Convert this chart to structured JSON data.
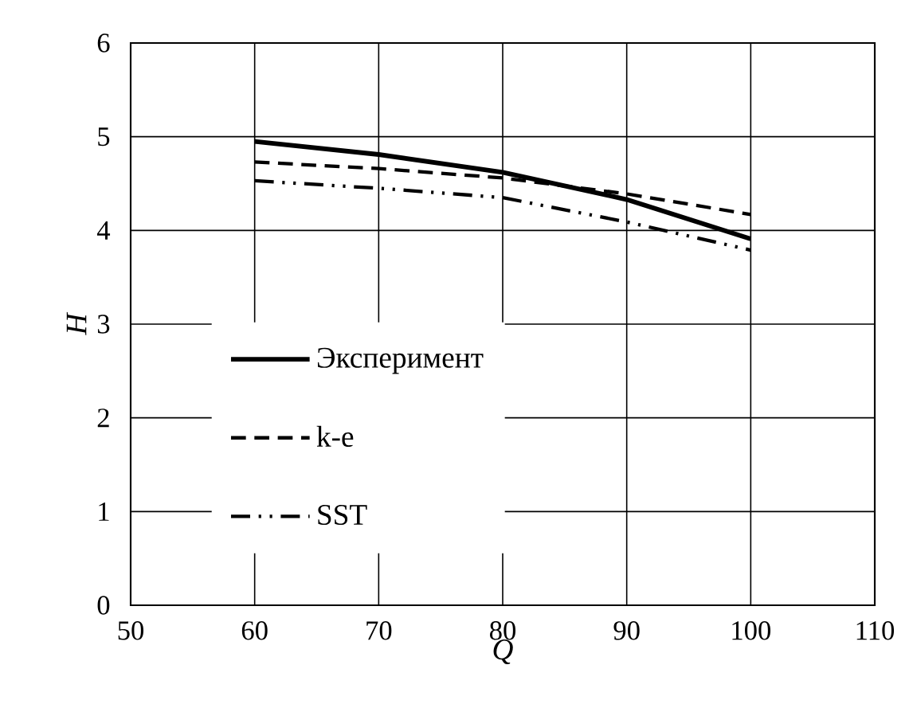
{
  "chart_data": {
    "type": "line",
    "xlabel": "Q",
    "ylabel": "H",
    "x": [
      60,
      70,
      80,
      90,
      100
    ],
    "series": [
      {
        "name": "Эксперимент",
        "color": "#000000",
        "line_style": "solid",
        "values": [
          4.95,
          4.81,
          4.62,
          4.33,
          3.91
        ]
      },
      {
        "name": "k-e",
        "color": "#000000",
        "line_style": "dashed",
        "values": [
          4.73,
          4.66,
          4.56,
          4.39,
          4.17
        ]
      },
      {
        "name": "SST",
        "color": "#000000",
        "line_style": "dashdotdot",
        "values": [
          4.53,
          4.45,
          4.35,
          4.09,
          3.79
        ]
      }
    ],
    "xlim": [
      50,
      110
    ],
    "xticks": [
      50,
      60,
      70,
      80,
      90,
      100,
      110
    ],
    "ylim": [
      0,
      6
    ],
    "yticks": [
      0,
      1,
      2,
      3,
      4,
      5,
      6
    ],
    "grid": true,
    "legend": "bottom left"
  }
}
